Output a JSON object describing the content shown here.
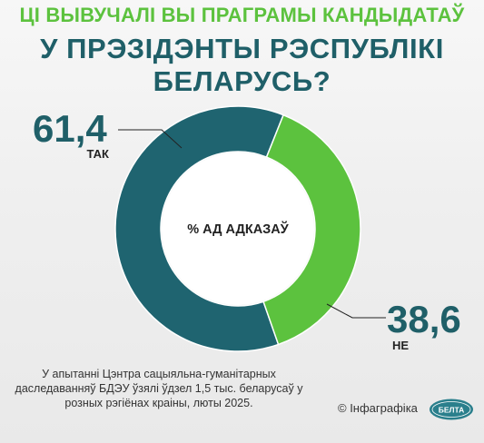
{
  "header": {
    "line1": "ЦІ ВЫВУЧАЛІ ВЫ ПРАГРАМЫ КАНДЫДАТАЎ",
    "line2": "У ПРЭЗІДЭНТЫ РЭСПУБЛІКІ",
    "line3": "БЕЛАРУСЬ?"
  },
  "chart_data": {
    "type": "pie",
    "style": "donut",
    "center_label": "% АД АДКАЗАЎ",
    "slices": [
      {
        "label": "ТАК",
        "value": 61.4,
        "display": "61,4",
        "color": "#1f6470"
      },
      {
        "label": "НЕ",
        "value": 38.6,
        "display": "38,6",
        "color": "#5cc23e"
      }
    ]
  },
  "footer": {
    "note": "У апытанні Цэнтра сацыяльна-гуманітарных даследаванняў БДЭУ ўзялі ўдзел 1,5 тыс. беларусаў у розных рэгіёнах краіны, люты 2025.",
    "credit": "© Інфаграфіка",
    "logo_text": "БЕЛТА"
  },
  "colors": {
    "title_green": "#5cc23e",
    "title_teal": "#1f5f68",
    "value_text": "#1f5f68",
    "label_text": "#222222",
    "logo_teal": "#2a7f8c"
  }
}
